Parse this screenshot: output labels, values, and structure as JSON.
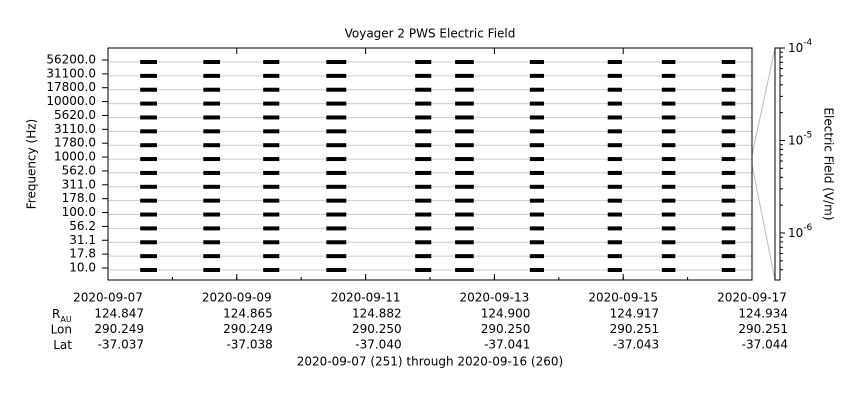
{
  "chart_data": {
    "type": "burst-spectrogram",
    "title": "Voyager 2 PWS Electric Field",
    "ylabel": "Frequency (Hz)",
    "zlabel": "Electric Field (V/m)",
    "channels": [
      "56200.0",
      "31100.0",
      "17800.0",
      "10000.0",
      "5620.0",
      "3110.0",
      "1780.0",
      "1000.0",
      "562.0",
      "311.0",
      "178.0",
      "100.0",
      "56.2",
      "31.1",
      "17.8",
      "10.0"
    ],
    "xlim": [
      251,
      261
    ],
    "xticks": [
      {
        "value": 251,
        "label": "2020-09-07"
      },
      {
        "value": 253,
        "label": "2020-09-09"
      },
      {
        "value": 255,
        "label": "2020-09-11"
      },
      {
        "value": 257,
        "label": "2020-09-13"
      },
      {
        "value": 259,
        "label": "2020-09-15"
      },
      {
        "value": 261,
        "label": "2020-09-17"
      }
    ],
    "bursts": [
      {
        "start": 251.5,
        "end": 251.76,
        "value": 0.0001
      },
      {
        "start": 252.48,
        "end": 252.74,
        "value": 0.0001
      },
      {
        "start": 253.41,
        "end": 253.66,
        "value": 0.0001
      },
      {
        "start": 254.39,
        "end": 254.7,
        "value": 0.0001
      },
      {
        "start": 255.77,
        "end": 256.02,
        "value": 0.0001
      },
      {
        "start": 256.39,
        "end": 256.68,
        "value": 0.0001
      },
      {
        "start": 257.55,
        "end": 257.77,
        "value": 0.0001
      },
      {
        "start": 258.76,
        "end": 258.98,
        "value": 0.0001
      },
      {
        "start": 259.6,
        "end": 259.81,
        "value": 0.0001
      },
      {
        "start": 260.53,
        "end": 260.74,
        "value": 0.0001
      }
    ],
    "color": "#000000",
    "zlim": [
      3.1e-07,
      0.0001
    ],
    "zscale": "log",
    "zticks": [
      {
        "value": 0.0001,
        "base": "10",
        "exponent": "-4"
      },
      {
        "value": 1e-05,
        "base": "10",
        "exponent": "-5"
      },
      {
        "value": 1e-06,
        "base": "10",
        "exponent": "-6"
      }
    ],
    "ephemeris": [
      {
        "label": "R",
        "sub": "AU",
        "values": [
          "124.847",
          "124.865",
          "124.882",
          "124.900",
          "124.917",
          "124.934"
        ]
      },
      {
        "label": "Lon",
        "values": [
          "290.249",
          "290.249",
          "290.250",
          "290.250",
          "290.251",
          "290.251"
        ]
      },
      {
        "label": "Lat",
        "values": [
          "-37.037",
          "-37.038",
          "-37.040",
          "-37.041",
          "-37.043",
          "-37.044"
        ]
      }
    ],
    "footer": "2020-09-07 (251) through 2020-09-16 (260)"
  }
}
